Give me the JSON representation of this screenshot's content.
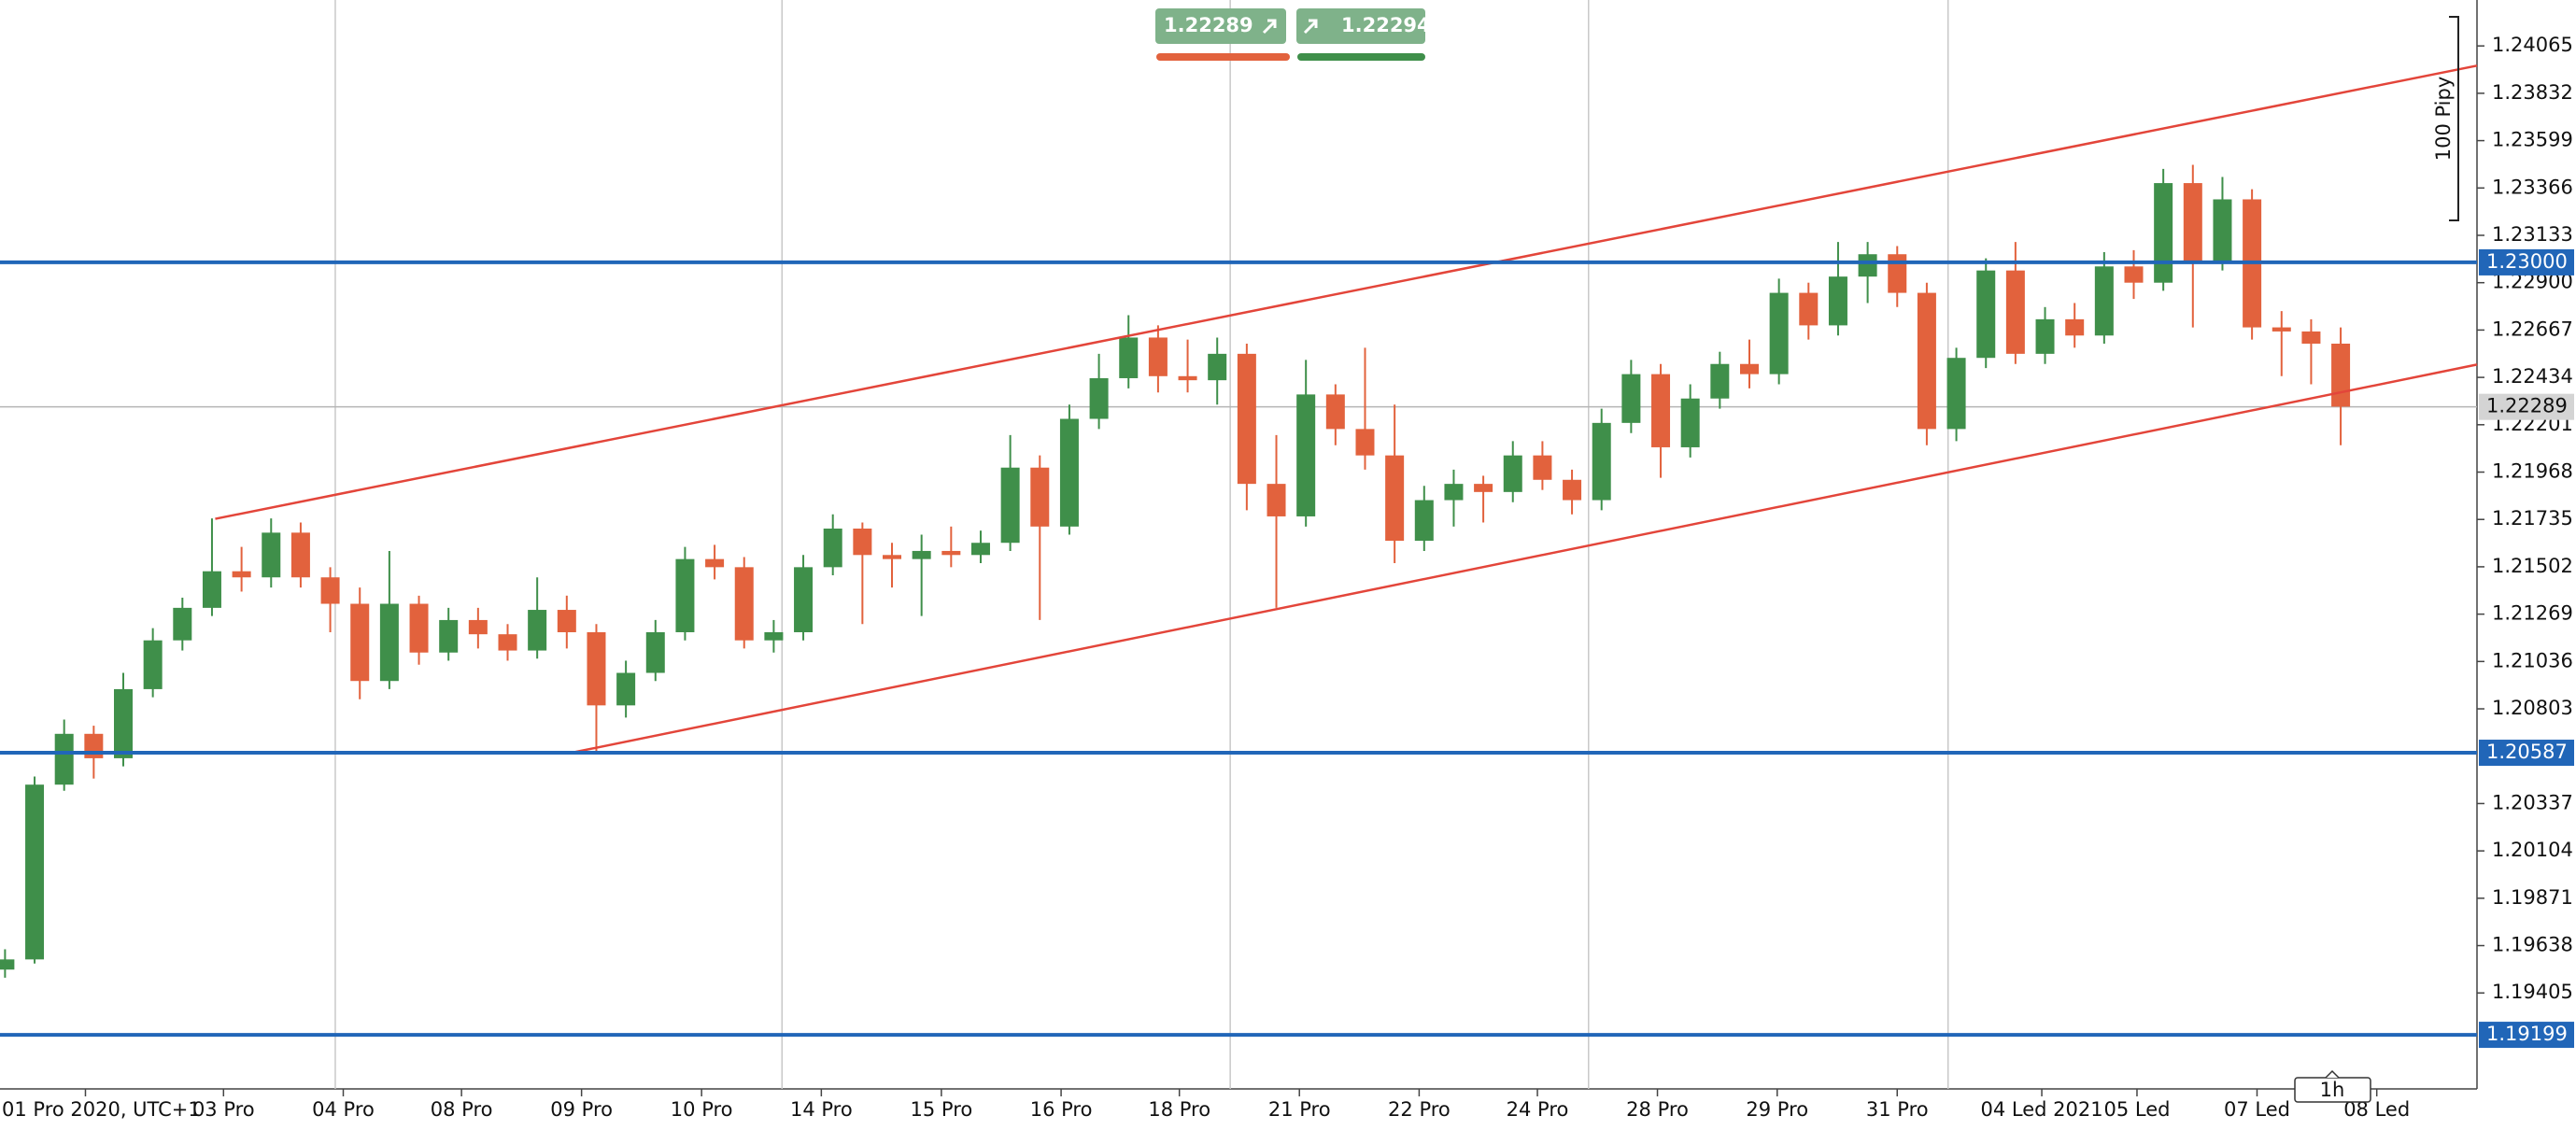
{
  "chart_data": {
    "type": "candlestick",
    "open": [
      1.1952,
      1.1957,
      1.2043,
      1.2068,
      1.2056,
      1.209,
      1.2114,
      1.213,
      1.2148,
      1.2145,
      1.2167,
      1.2145,
      1.2132,
      1.2094,
      1.2132,
      1.2108,
      1.2124,
      1.2117,
      1.2109,
      1.2129,
      1.2118,
      1.2082,
      1.2098,
      1.2118,
      1.2154,
      1.215,
      1.2114,
      1.2118,
      1.215,
      1.2169,
      1.2156,
      1.2154,
      1.2158,
      1.2156,
      1.2162,
      1.2199,
      1.217,
      1.2223,
      1.2243,
      1.2263,
      1.2244,
      1.2242,
      1.2255,
      1.2191,
      1.2175,
      1.2235,
      1.2218,
      1.2205,
      1.2163,
      1.2183,
      1.2191,
      1.2187,
      1.2205,
      1.2193,
      1.2183,
      1.2221,
      1.2245,
      1.2209,
      1.2233,
      1.225,
      1.2245,
      1.2285,
      1.2269,
      1.2293,
      1.2304,
      1.2285,
      1.2218,
      1.2253,
      1.2296,
      1.2255,
      1.2272,
      1.2264,
      1.2298,
      1.229,
      1.2339,
      1.23,
      1.2331,
      1.2268,
      1.2266,
      1.226
    ],
    "high": [
      1.1962,
      1.2047,
      1.2075,
      1.2072,
      1.2098,
      1.212,
      1.2135,
      1.2174,
      1.216,
      1.2174,
      1.2172,
      1.215,
      1.214,
      1.2158,
      1.2136,
      1.213,
      1.213,
      1.2122,
      1.2145,
      1.2136,
      1.2122,
      1.2104,
      1.2124,
      1.216,
      1.2161,
      1.2155,
      1.2124,
      1.2156,
      1.2176,
      1.2172,
      1.2162,
      1.2166,
      1.217,
      1.2168,
      1.2215,
      1.2205,
      1.223,
      1.2255,
      1.2274,
      1.2269,
      1.2262,
      1.2263,
      1.226,
      1.2215,
      1.2252,
      1.224,
      1.2258,
      1.223,
      1.219,
      1.2198,
      1.2195,
      1.2212,
      1.2212,
      1.2198,
      1.2228,
      1.2252,
      1.225,
      1.224,
      1.2256,
      1.2262,
      1.2292,
      1.229,
      1.231,
      1.231,
      1.2308,
      1.229,
      1.2258,
      1.2302,
      1.231,
      1.2278,
      1.228,
      1.2305,
      1.2306,
      1.2346,
      1.2348,
      1.2342,
      1.2336,
      1.2276,
      1.2272,
      1.2268
    ],
    "low": [
      1.1948,
      1.1955,
      1.204,
      1.2046,
      1.2052,
      1.2086,
      1.2109,
      1.2126,
      1.2138,
      1.214,
      1.214,
      1.2118,
      1.2085,
      1.209,
      1.2102,
      1.2104,
      1.211,
      1.2104,
      1.2105,
      1.211,
      1.2059,
      1.2076,
      1.2094,
      1.2114,
      1.2144,
      1.211,
      1.2108,
      1.2114,
      1.2146,
      1.2122,
      1.214,
      1.2126,
      1.215,
      1.2152,
      1.2158,
      1.2124,
      1.2166,
      1.2218,
      1.2238,
      1.2236,
      1.2236,
      1.223,
      1.2178,
      1.213,
      1.217,
      1.221,
      1.2198,
      1.2152,
      1.2158,
      1.217,
      1.2172,
      1.2182,
      1.2188,
      1.2176,
      1.2178,
      1.2216,
      1.2194,
      1.2204,
      1.2228,
      1.2238,
      1.224,
      1.2262,
      1.2264,
      1.228,
      1.2278,
      1.221,
      1.2212,
      1.2248,
      1.225,
      1.225,
      1.2258,
      1.226,
      1.2282,
      1.2286,
      1.2268,
      1.2296,
      1.2262,
      1.2244,
      1.224,
      1.221
    ],
    "close": [
      1.1957,
      1.2043,
      1.2068,
      1.2056,
      1.209,
      1.2114,
      1.213,
      1.2148,
      1.2145,
      1.2167,
      1.2145,
      1.2132,
      1.2094,
      1.2132,
      1.2108,
      1.2124,
      1.2117,
      1.2109,
      1.2129,
      1.2118,
      1.2082,
      1.2098,
      1.2118,
      1.2154,
      1.215,
      1.2114,
      1.2118,
      1.215,
      1.2169,
      1.2156,
      1.2154,
      1.2158,
      1.2156,
      1.2162,
      1.2199,
      1.217,
      1.2223,
      1.2243,
      1.2263,
      1.2244,
      1.2242,
      1.2255,
      1.2191,
      1.2175,
      1.2235,
      1.2218,
      1.2205,
      1.2163,
      1.2183,
      1.2191,
      1.2187,
      1.2205,
      1.2193,
      1.2183,
      1.2221,
      1.2245,
      1.2209,
      1.2233,
      1.225,
      1.2245,
      1.2285,
      1.2269,
      1.2293,
      1.2304,
      1.2285,
      1.2218,
      1.2253,
      1.2296,
      1.2255,
      1.2272,
      1.2264,
      1.2298,
      1.229,
      1.2339,
      1.23,
      1.2331,
      1.2268,
      1.2266,
      1.226,
      1.2229
    ],
    "colors": {
      "up": "#3f8f4a",
      "down": "#e2623d"
    },
    "xlim": [
      -0.17,
      83.61
    ],
    "ylim": [
      1.18942,
      1.24291
    ],
    "yticks": [
      1.24065,
      1.23832,
      1.23599,
      1.23366,
      1.23133,
      {
        "value": 1.229,
        "label": "1.22900"
      },
      1.22667,
      1.22434,
      1.22201,
      1.21968,
      1.21735,
      1.21502,
      1.21269,
      1.21036,
      1.20803,
      1.20337,
      1.20104,
      1.19871,
      1.19638,
      1.19405
    ],
    "xticks": [
      {
        "value": 2.72,
        "label": "01 Pro 2020, UTC+1"
      },
      {
        "value": 7.39,
        "label": "03 Pro"
      },
      {
        "value": 11.44,
        "label": "04 Pro"
      },
      {
        "value": 15.44,
        "label": "08 Pro"
      },
      {
        "value": 19.5,
        "label": "09 Pro"
      },
      {
        "value": 23.56,
        "label": "10 Pro"
      },
      {
        "value": 27.61,
        "label": "14 Pro"
      },
      {
        "value": 31.67,
        "label": "15 Pro"
      },
      {
        "value": 35.72,
        "label": "16 Pro"
      },
      {
        "value": 39.72,
        "label": "18 Pro"
      },
      {
        "value": 43.78,
        "label": "21 Pro"
      },
      {
        "value": 47.83,
        "label": "22 Pro"
      },
      {
        "value": 51.83,
        "label": "24 Pro"
      },
      {
        "value": 55.89,
        "label": "28 Pro"
      },
      {
        "value": 59.94,
        "label": "29 Pro"
      },
      {
        "value": 64,
        "label": "31 Pro"
      },
      {
        "value": 68.89,
        "label": "04 Led 2021"
      },
      {
        "value": 72.11,
        "label": "05 Led"
      },
      {
        "value": 76.17,
        "label": "07 Led"
      },
      {
        "value": 80.22,
        "label": "08 Led"
      }
    ],
    "xgrid": [
      11.17,
      26.28,
      41.44,
      53.56,
      65.72
    ],
    "levels": [
      {
        "value": 1.23,
        "label": "1.23000"
      },
      1.20587,
      1.19199
    ],
    "level_color": "#2166b8",
    "current_price": 1.22289,
    "trendlines": [
      {
        "x": [
          7.11,
          83.61
        ],
        "y": [
          1.21738,
          1.23968
        ]
      },
      {
        "x": [
          19.3,
          83.61
        ],
        "y": [
          1.20591,
          1.22497
        ]
      }
    ],
    "trendline_color": "#e3453a",
    "quote": {
      "sell": 1.22289,
      "buy": 1.22294
    },
    "pip_ruler": "100 Pipy",
    "timeframe": "1h"
  }
}
